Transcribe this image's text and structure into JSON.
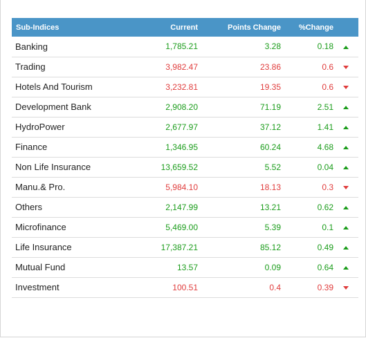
{
  "table": {
    "headers": {
      "name": "Sub-Indices",
      "current": "Current",
      "points_change": "Points Change",
      "percent_change": "%Change"
    },
    "colors": {
      "header_bg": "#4a95c7",
      "up": "#1a9c1a",
      "down": "#e03c3c"
    },
    "rows": [
      {
        "name": "Banking",
        "current": "1,785.21",
        "points_change": "3.28",
        "percent_change": "0.18",
        "direction": "up",
        "arrow_icon": "triangle-up-icon"
      },
      {
        "name": "Trading",
        "current": "3,982.47",
        "points_change": "23.86",
        "percent_change": "0.6",
        "direction": "down",
        "arrow_icon": "triangle-down-icon"
      },
      {
        "name": "Hotels And Tourism",
        "current": "3,232.81",
        "points_change": "19.35",
        "percent_change": "0.6",
        "direction": "down",
        "arrow_icon": "triangle-down-icon"
      },
      {
        "name": "Development Bank",
        "current": "2,908.20",
        "points_change": "71.19",
        "percent_change": "2.51",
        "direction": "up",
        "arrow_icon": "triangle-up-icon"
      },
      {
        "name": "HydroPower",
        "current": "2,677.97",
        "points_change": "37.12",
        "percent_change": "1.41",
        "direction": "up",
        "arrow_icon": "triangle-up-icon"
      },
      {
        "name": "Finance",
        "current": "1,346.95",
        "points_change": "60.24",
        "percent_change": "4.68",
        "direction": "up",
        "arrow_icon": "triangle-up-icon"
      },
      {
        "name": "Non Life Insurance",
        "current": "13,659.52",
        "points_change": "5.52",
        "percent_change": "0.04",
        "direction": "up",
        "arrow_icon": "triangle-up-icon"
      },
      {
        "name": "Manu.& Pro.",
        "current": "5,984.10",
        "points_change": "18.13",
        "percent_change": "0.3",
        "direction": "down",
        "arrow_icon": "triangle-down-icon"
      },
      {
        "name": "Others",
        "current": "2,147.99",
        "points_change": "13.21",
        "percent_change": "0.62",
        "direction": "up",
        "arrow_icon": "triangle-up-icon"
      },
      {
        "name": "Microfinance",
        "current": "5,469.00",
        "points_change": "5.39",
        "percent_change": "0.1",
        "direction": "up",
        "arrow_icon": "triangle-up-icon"
      },
      {
        "name": "Life Insurance",
        "current": "17,387.21",
        "points_change": "85.12",
        "percent_change": "0.49",
        "direction": "up",
        "arrow_icon": "triangle-up-icon"
      },
      {
        "name": "Mutual Fund",
        "current": "13.57",
        "points_change": "0.09",
        "percent_change": "0.64",
        "direction": "up",
        "arrow_icon": "triangle-up-icon"
      },
      {
        "name": "Investment",
        "current": "100.51",
        "points_change": "0.4",
        "percent_change": "0.39",
        "direction": "down",
        "arrow_icon": "triangle-down-icon"
      }
    ]
  }
}
